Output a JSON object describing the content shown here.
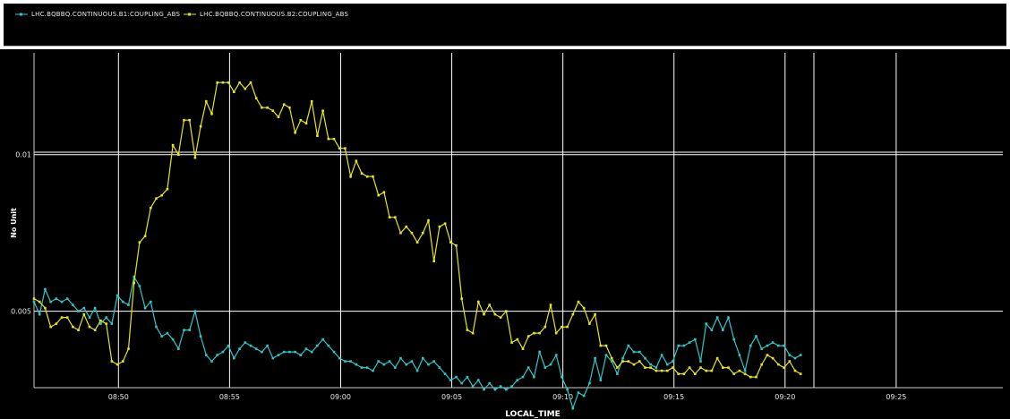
{
  "chart_data": {
    "type": "line",
    "xlabel": "LOCAL_TIME",
    "ylabel": "No Unit",
    "x_ticks": [
      "08:50",
      "08:55",
      "09:00",
      "09:05",
      "09:10",
      "09:15",
      "09:20",
      "09:25"
    ],
    "y_ticks": [
      {
        "label": "0.01",
        "value": 0.01
      },
      {
        "label": "0.005",
        "value": 0.005
      }
    ],
    "x_unit": "minutes",
    "x_range": [
      526.2,
      569.8
    ],
    "ylim": [
      0.00256,
      0.01325
    ],
    "grid": true,
    "legend_position": "top-left",
    "background": "#000000",
    "grid_color": "#ffffff",
    "series": [
      {
        "name": "LHC.BQBBQ.CONTINUOUS.B1:COUPLING_ABS",
        "color": "#2cc7c7",
        "start": 526.2,
        "step": 0.25,
        "values": [
          0.0053,
          0.0049,
          0.0057,
          0.0053,
          0.0054,
          0.0053,
          0.0054,
          0.0052,
          0.005,
          0.0051,
          0.0048,
          0.0051,
          0.0046,
          0.0048,
          0.0046,
          0.0055,
          0.0053,
          0.0052,
          0.0061,
          0.0058,
          0.0051,
          0.0053,
          0.0045,
          0.0042,
          0.0043,
          0.0041,
          0.0038,
          0.0044,
          0.0044,
          0.005,
          0.0042,
          0.0036,
          0.0034,
          0.0036,
          0.0037,
          0.0039,
          0.0035,
          0.0038,
          0.004,
          0.0039,
          0.0038,
          0.0037,
          0.0039,
          0.0035,
          0.0036,
          0.0037,
          0.0037,
          0.0037,
          0.0036,
          0.0038,
          0.0037,
          0.0039,
          0.0041,
          0.0039,
          0.0037,
          0.0035,
          0.0034,
          0.0034,
          0.0033,
          0.0032,
          0.0032,
          0.0031,
          0.0034,
          0.0033,
          0.0034,
          0.0032,
          0.0035,
          0.0033,
          0.0034,
          0.0031,
          0.0035,
          0.0033,
          0.0034,
          0.0032,
          0.003,
          0.0028,
          0.0029,
          0.0027,
          0.0029,
          0.0026,
          0.0028,
          0.0025,
          0.0027,
          0.0025,
          0.0026,
          0.0025,
          0.0026,
          0.0028,
          0.0029,
          0.0032,
          0.0029,
          0.0037,
          0.0032,
          0.0033,
          0.0036,
          0.0029,
          0.0025,
          0.0019,
          0.0024,
          0.0023,
          0.0027,
          0.0035,
          0.0028,
          0.0036,
          0.0034,
          0.003,
          0.0035,
          0.0039,
          0.0037,
          0.0037,
          0.0035,
          0.0033,
          0.0032,
          0.0036,
          0.0033,
          0.0034,
          0.0039,
          0.0039,
          0.004,
          0.0041,
          0.0034,
          0.0046,
          0.0044,
          0.0048,
          0.0044,
          0.0048,
          0.0041,
          0.0036,
          0.0031,
          0.0039,
          0.0042,
          0.0038,
          0.0039,
          0.004,
          0.0039,
          0.0039,
          0.0036,
          0.0035,
          0.0036
        ]
      },
      {
        "name": "LHC.BQBBQ.CONTINUOUS.B2:COUPLING_ABS",
        "color": "#e6e619",
        "start": 526.2,
        "step": 0.25,
        "values": [
          0.0054,
          0.0053,
          0.0051,
          0.0045,
          0.0046,
          0.0048,
          0.0048,
          0.0045,
          0.0044,
          0.0049,
          0.0045,
          0.0044,
          0.0047,
          0.0046,
          0.0034,
          0.0033,
          0.0034,
          0.0038,
          0.0059,
          0.0072,
          0.0074,
          0.0083,
          0.0086,
          0.0087,
          0.0089,
          0.0103,
          0.01,
          0.0111,
          0.0111,
          0.0099,
          0.0109,
          0.0117,
          0.0113,
          0.0123,
          0.0123,
          0.0123,
          0.012,
          0.0123,
          0.0121,
          0.0123,
          0.0118,
          0.0115,
          0.0115,
          0.0114,
          0.0112,
          0.0116,
          0.0115,
          0.0107,
          0.0111,
          0.011,
          0.0117,
          0.0106,
          0.0114,
          0.0105,
          0.0105,
          0.0102,
          0.0102,
          0.0093,
          0.0098,
          0.0094,
          0.0093,
          0.0093,
          0.0087,
          0.0088,
          0.008,
          0.008,
          0.0075,
          0.0077,
          0.0075,
          0.0072,
          0.0075,
          0.0079,
          0.0066,
          0.0077,
          0.0078,
          0.0072,
          0.0071,
          0.0054,
          0.0044,
          0.0043,
          0.0053,
          0.0049,
          0.0052,
          0.0049,
          0.0048,
          0.005,
          0.004,
          0.0041,
          0.0038,
          0.0042,
          0.0043,
          0.0043,
          0.0045,
          0.0052,
          0.0043,
          0.0045,
          0.0045,
          0.0049,
          0.0053,
          0.0051,
          0.0046,
          0.0049,
          0.0039,
          0.0039,
          0.0035,
          0.0032,
          0.0034,
          0.0034,
          0.0033,
          0.0034,
          0.0032,
          0.0032,
          0.0031,
          0.0031,
          0.0031,
          0.0032,
          0.003,
          0.003,
          0.0032,
          0.003,
          0.0032,
          0.0031,
          0.0031,
          0.0035,
          0.0032,
          0.0032,
          0.003,
          0.0031,
          0.003,
          0.0029,
          0.0029,
          0.0033,
          0.0036,
          0.0035,
          0.0033,
          0.0032,
          0.0034,
          0.0031,
          0.003
        ]
      }
    ]
  }
}
